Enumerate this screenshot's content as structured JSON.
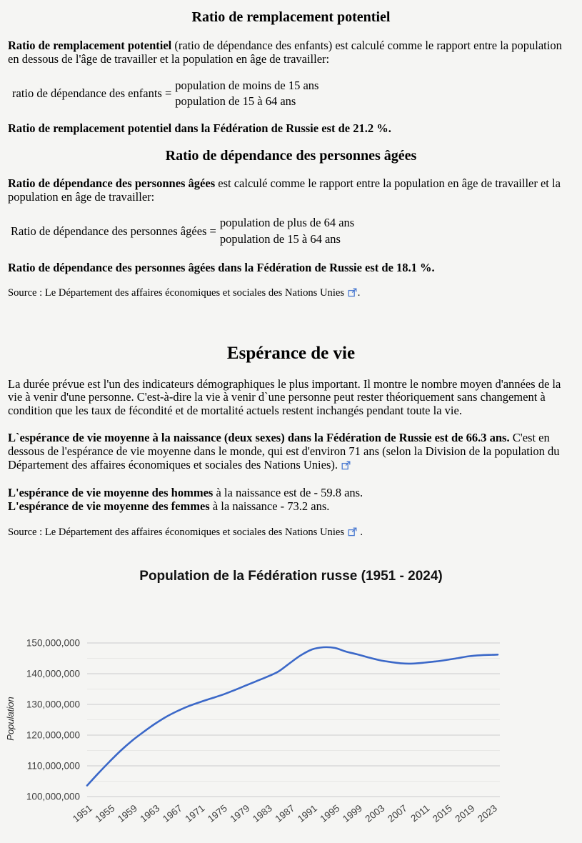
{
  "section_children": {
    "heading": "Ratio de remplacement potentiel",
    "para_bold": "Ratio de remplacement potentiel",
    "para_rest": " (ratio de dépendance des enfants) est calculé comme le rapport entre la population en dessous de l'âge de travailler et la population en âge de travailler:",
    "formula_label": "ratio de dépendance des enfants =",
    "formula_numerator": "population de moins de 15 ans",
    "formula_denominator": "population de 15 à 64 ans",
    "result": "Ratio de remplacement potentiel dans la Fédération de Russie est de 21.2 %."
  },
  "section_elderly": {
    "heading": "Ratio de dépendance des personnes âgées",
    "para_bold": "Ratio de dépendance des personnes âgées",
    "para_rest": " est calculé comme le rapport entre la population en âge de travailler et la population en âge de travailler:",
    "formula_label": "Ratio de dépendance des personnes âgées =",
    "formula_numerator": "population de plus de 64 ans",
    "formula_denominator": "population de 15 à 64 ans",
    "result": "Ratio de dépendance des personnes âgées dans la Fédération de Russie est de 18.1 %."
  },
  "source1": {
    "text": "Source : Le Département des affaires économiques et sociales des Nations Unies",
    "suffix": "."
  },
  "life": {
    "heading": "Espérance de vie",
    "p1": "La durée prévue est l'un des indicateurs démographiques le plus important. Il montre le nombre moyen d'années de la vie à venir d'une personne. C'est-à-dire la vie à venir d`une personne peut rester théoriquement sans changement à condition que les taux de fécondité et de mortalité actuels restent inchangés pendant toute la vie.",
    "p2_bold": "L`espérance de vie moyenne à la naissance (deux sexes) dans la Fédération de Russie est de 66.3 ans.",
    "p2_rest": " C'est en dessous de l'espérance de vie moyenne dans le monde, qui est d'environ 71 ans (selon la Division de la population du Département des affaires économiques et sociales des Nations Unies).",
    "men_bold": "L'espérance de vie moyenne des hommes",
    "men_rest": " à la naissance est de - 59.8 ans.",
    "women_bold": "L'espérance de vie moyenne des femmes",
    "women_rest": " à la naissance - 73.2 ans.",
    "source_text": "Source : Le Département des affaires économiques et sociales des Nations Unies",
    "source_suffix": " ."
  },
  "icons": {
    "external_link": "external-link",
    "external_link_color": "#4c7bd1"
  },
  "chart_data": {
    "type": "line",
    "title": "Population de la Fédération russe (1951 - 2024)",
    "ylabel": "Population",
    "xlabel": "",
    "xlim": [
      1951,
      2024
    ],
    "ylim": [
      100000000,
      150000000
    ],
    "y_major_step": 10000000,
    "y_minor_step": 5000000,
    "y_tick_labels": [
      "100,000,000",
      "110,000,000",
      "120,000,000",
      "130,000,000",
      "140,000,000",
      "150,000,000"
    ],
    "x_ticks": [
      1951,
      1955,
      1959,
      1963,
      1967,
      1971,
      1975,
      1979,
      1983,
      1987,
      1991,
      1995,
      1999,
      2003,
      2007,
      2011,
      2015,
      2019,
      2023
    ],
    "grid": "on",
    "legend": "none",
    "line_color": "#3b68c8",
    "grid_major_color": "#cccccc",
    "grid_minor_color": "#e8e8e6",
    "tick_text_color": "#3e3e3e",
    "background": "#f5f5f3",
    "series": [
      {
        "name": "Population",
        "x": [
          1951,
          1953,
          1955,
          1957,
          1959,
          1961,
          1963,
          1965,
          1967,
          1969,
          1971,
          1973,
          1975,
          1977,
          1979,
          1981,
          1983,
          1985,
          1987,
          1989,
          1991,
          1993,
          1995,
          1997,
          1999,
          2001,
          2003,
          2005,
          2007,
          2009,
          2011,
          2013,
          2015,
          2017,
          2019,
          2021,
          2023,
          2024
        ],
        "values": [
          103600000,
          107600000,
          111400000,
          115000000,
          118200000,
          121000000,
          123600000,
          125900000,
          127800000,
          129400000,
          130700000,
          131900000,
          133100000,
          134500000,
          136000000,
          137500000,
          139000000,
          140700000,
          143400000,
          146000000,
          147900000,
          148600000,
          148400000,
          147200000,
          146300000,
          145300000,
          144400000,
          143800000,
          143350000,
          143300000,
          143600000,
          144000000,
          144500000,
          145100000,
          145700000,
          146000000,
          146150000,
          146200000
        ]
      }
    ]
  }
}
